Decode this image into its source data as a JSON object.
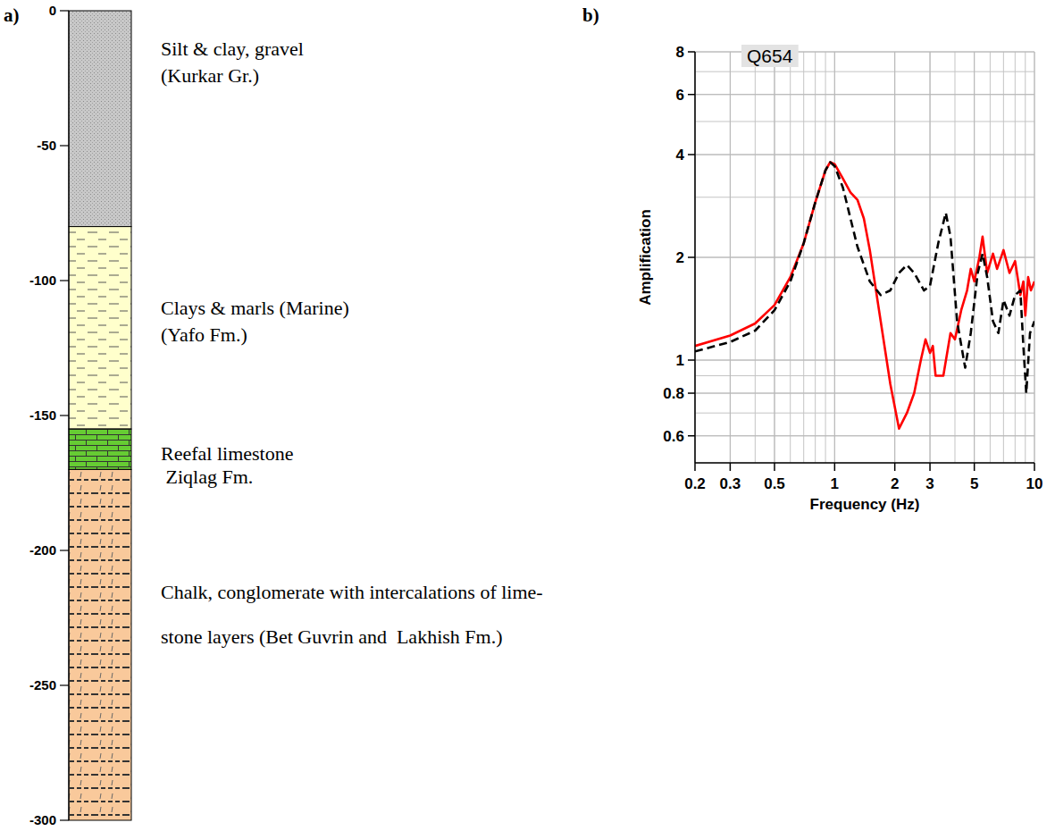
{
  "panel_labels": [
    "a)",
    "b)"
  ],
  "column": {
    "ylim": [
      0,
      -300
    ],
    "yticks": [
      0,
      -50,
      -100,
      -150,
      -200,
      -250,
      -300
    ],
    "layers": [
      {
        "top": 0,
        "bottom": -80,
        "lithology": "gravel",
        "label": [
          "Silt & clay, gravel",
          "(Kurkar Gr.)"
        ]
      },
      {
        "top": -80,
        "bottom": -155,
        "lithology": "clay",
        "label": [
          "Clays & marls (Marine)",
          "(Yafo Fm.)"
        ]
      },
      {
        "top": -155,
        "bottom": -170,
        "lithology": "limestone",
        "label": [
          "Reefal limestone",
          " Ziqlag Fm."
        ]
      },
      {
        "top": -170,
        "bottom": -300,
        "lithology": "chalk",
        "label": [
          "Chalk, conglomerate with intercalations of lime-",
          "stone layers (Bet Guvrin and  Lakhish Fm.)"
        ]
      }
    ]
  },
  "chart_data": {
    "type": "line",
    "title": "Q654",
    "x_label": "Frequency (Hz)",
    "y_label": "Amplification",
    "log": true,
    "grid": true,
    "xlim": [
      0.2,
      10
    ],
    "ylim": [
      0.5,
      8
    ],
    "xticks": [
      0.2,
      0.3,
      0.5,
      1,
      2,
      3,
      5,
      10
    ],
    "yticks": [
      0.6,
      0.8,
      1,
      2,
      4,
      6,
      8
    ],
    "series": [
      {
        "color": "#ff0000",
        "line_style": "solid",
        "x": [
          0.2,
          0.3,
          0.4,
          0.5,
          0.6,
          0.7,
          0.8,
          0.9,
          0.95,
          1.0,
          1.1,
          1.2,
          1.3,
          1.4,
          1.5,
          1.7,
          1.9,
          2.1,
          2.3,
          2.5,
          2.7,
          2.85,
          3.0,
          3.1,
          3.2,
          3.5,
          3.8,
          4.0,
          4.3,
          4.6,
          4.8,
          5.0,
          5.3,
          5.5,
          5.8,
          6.2,
          6.5,
          7.0,
          7.5,
          8.0,
          8.5,
          8.8,
          9.0,
          9.3,
          9.6,
          10
        ],
        "values": [
          1.1,
          1.18,
          1.28,
          1.45,
          1.75,
          2.2,
          2.9,
          3.6,
          3.8,
          3.75,
          3.4,
          3.1,
          2.95,
          2.6,
          2.1,
          1.3,
          0.85,
          0.63,
          0.7,
          0.8,
          1.0,
          1.15,
          1.05,
          1.1,
          0.9,
          0.9,
          1.2,
          1.15,
          1.4,
          1.6,
          1.85,
          1.7,
          2.0,
          2.3,
          1.8,
          2.05,
          1.85,
          2.1,
          1.8,
          1.95,
          1.55,
          1.7,
          1.35,
          1.75,
          1.6,
          1.7
        ]
      },
      {
        "color": "#000000",
        "line_style": "dashed",
        "x": [
          0.2,
          0.3,
          0.4,
          0.5,
          0.6,
          0.7,
          0.8,
          0.9,
          0.95,
          1.0,
          1.1,
          1.2,
          1.3,
          1.5,
          1.7,
          1.9,
          2.1,
          2.3,
          2.5,
          2.8,
          3.0,
          3.3,
          3.6,
          3.8,
          4.1,
          4.5,
          4.8,
          5.2,
          5.5,
          5.8,
          6.2,
          6.6,
          7.0,
          7.5,
          8.0,
          8.5,
          8.8,
          9.1,
          9.5,
          10
        ],
        "values": [
          1.06,
          1.13,
          1.22,
          1.4,
          1.7,
          2.2,
          2.9,
          3.6,
          3.8,
          3.7,
          3.2,
          2.6,
          2.15,
          1.7,
          1.55,
          1.6,
          1.8,
          1.9,
          1.8,
          1.6,
          1.65,
          2.2,
          2.7,
          2.3,
          1.3,
          0.95,
          1.2,
          1.8,
          2.05,
          1.75,
          1.3,
          1.2,
          1.5,
          1.35,
          1.55,
          1.6,
          1.1,
          0.8,
          1.2,
          1.3
        ]
      }
    ]
  }
}
